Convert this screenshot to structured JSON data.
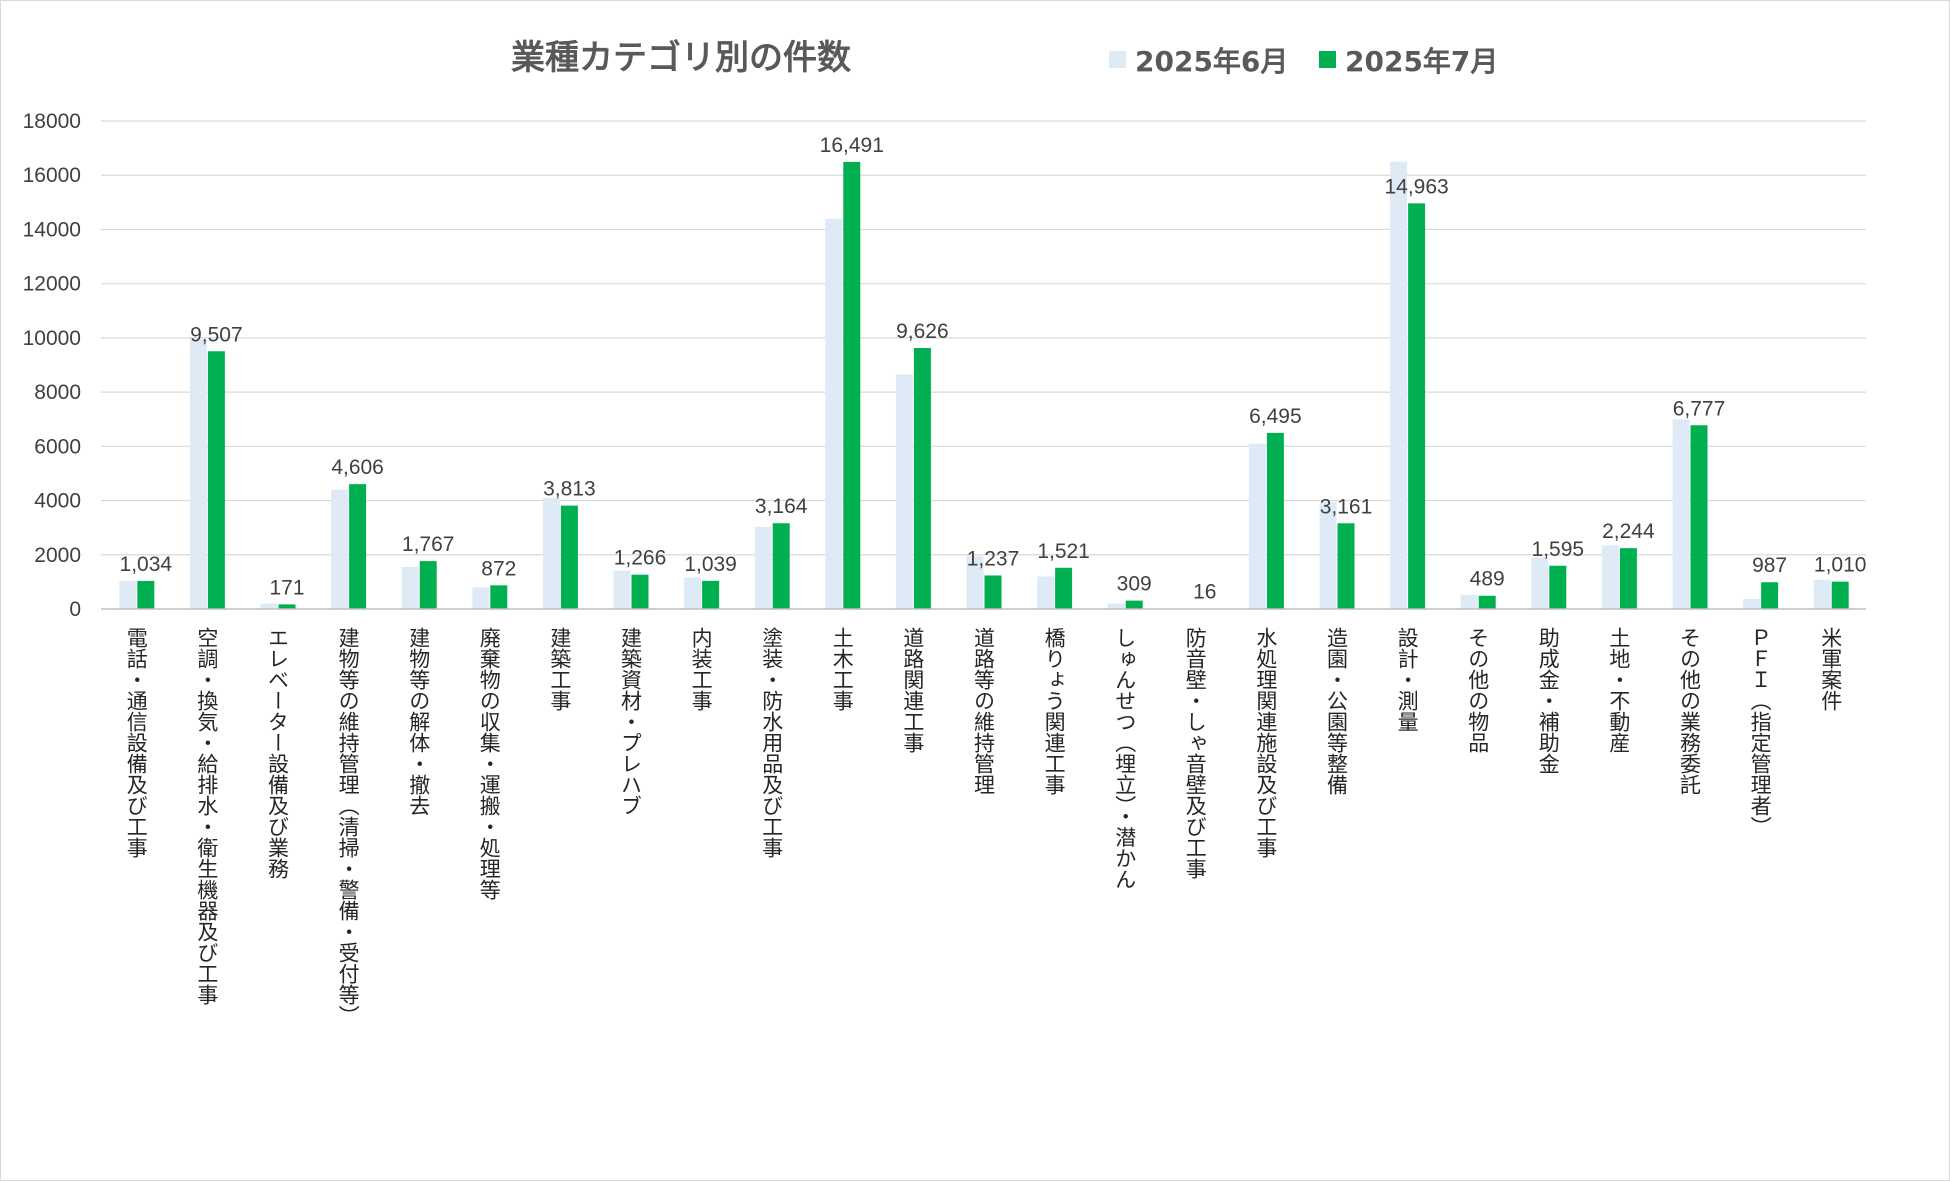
{
  "chart_data": {
    "type": "bar",
    "title": "業種カテゴリ別の件数",
    "xlabel": "",
    "ylabel": "",
    "ylim": [
      0,
      18000
    ],
    "yticks": [
      0,
      2000,
      4000,
      6000,
      8000,
      10000,
      12000,
      14000,
      16000,
      18000
    ],
    "grid": true,
    "legend_position": "top",
    "categories": [
      "電話・通信設備及び工事",
      "空調・換気・給排水・衛生機器及び工事",
      "エレベーター設備及び業務",
      "建物等の維持管理（清掃・警備・受付等）",
      "建物等の解体・撤去",
      "廃棄物の収集・運搬・処理等",
      "建築工事",
      "建築資材・プレハブ",
      "内装工事",
      "塗装・防水用品及び工事",
      "土木工事",
      "道路関連工事",
      "道路等の維持管理",
      "橋りょう関連工事",
      "しゅんせつ（埋立）・潜かん",
      "防音壁・しゃ音壁及び工事",
      "水処理関連施設及び工事",
      "造園・公園等整備",
      "設計・測量",
      "その他の物品",
      "助成金・補助金",
      "土地・不動産",
      "その他の業務委託",
      "ＰＦＩ（指定管理者）",
      "米軍案件"
    ],
    "series": [
      {
        "name": "2025年6月",
        "color": "#deebf7",
        "values": [
          1030,
          9950,
          200,
          4400,
          1550,
          800,
          4100,
          1420,
          1160,
          3030,
          14400,
          8650,
          1950,
          1200,
          200,
          15,
          6100,
          3950,
          16500,
          520,
          1900,
          2350,
          7000,
          370,
          1080
        ]
      },
      {
        "name": "2025年7月",
        "color": "#00b050",
        "values": [
          1034,
          9507,
          171,
          4606,
          1767,
          872,
          3813,
          1266,
          1039,
          3164,
          16491,
          9626,
          1237,
          1521,
          309,
          16,
          6495,
          3161,
          14963,
          489,
          1595,
          2244,
          6777,
          987,
          1010
        ],
        "data_labels": [
          "1,034",
          "9,507",
          "171",
          "4,606",
          "1,767",
          "872",
          "3,813",
          "1,266",
          "1,039",
          "3,164",
          "16,491",
          "9,626",
          "1,237",
          "1,521",
          "309",
          "16",
          "6,495",
          "3,161",
          "14,963",
          "489",
          "1,595",
          "2,244",
          "6,777",
          "987",
          "1,010"
        ]
      }
    ]
  }
}
